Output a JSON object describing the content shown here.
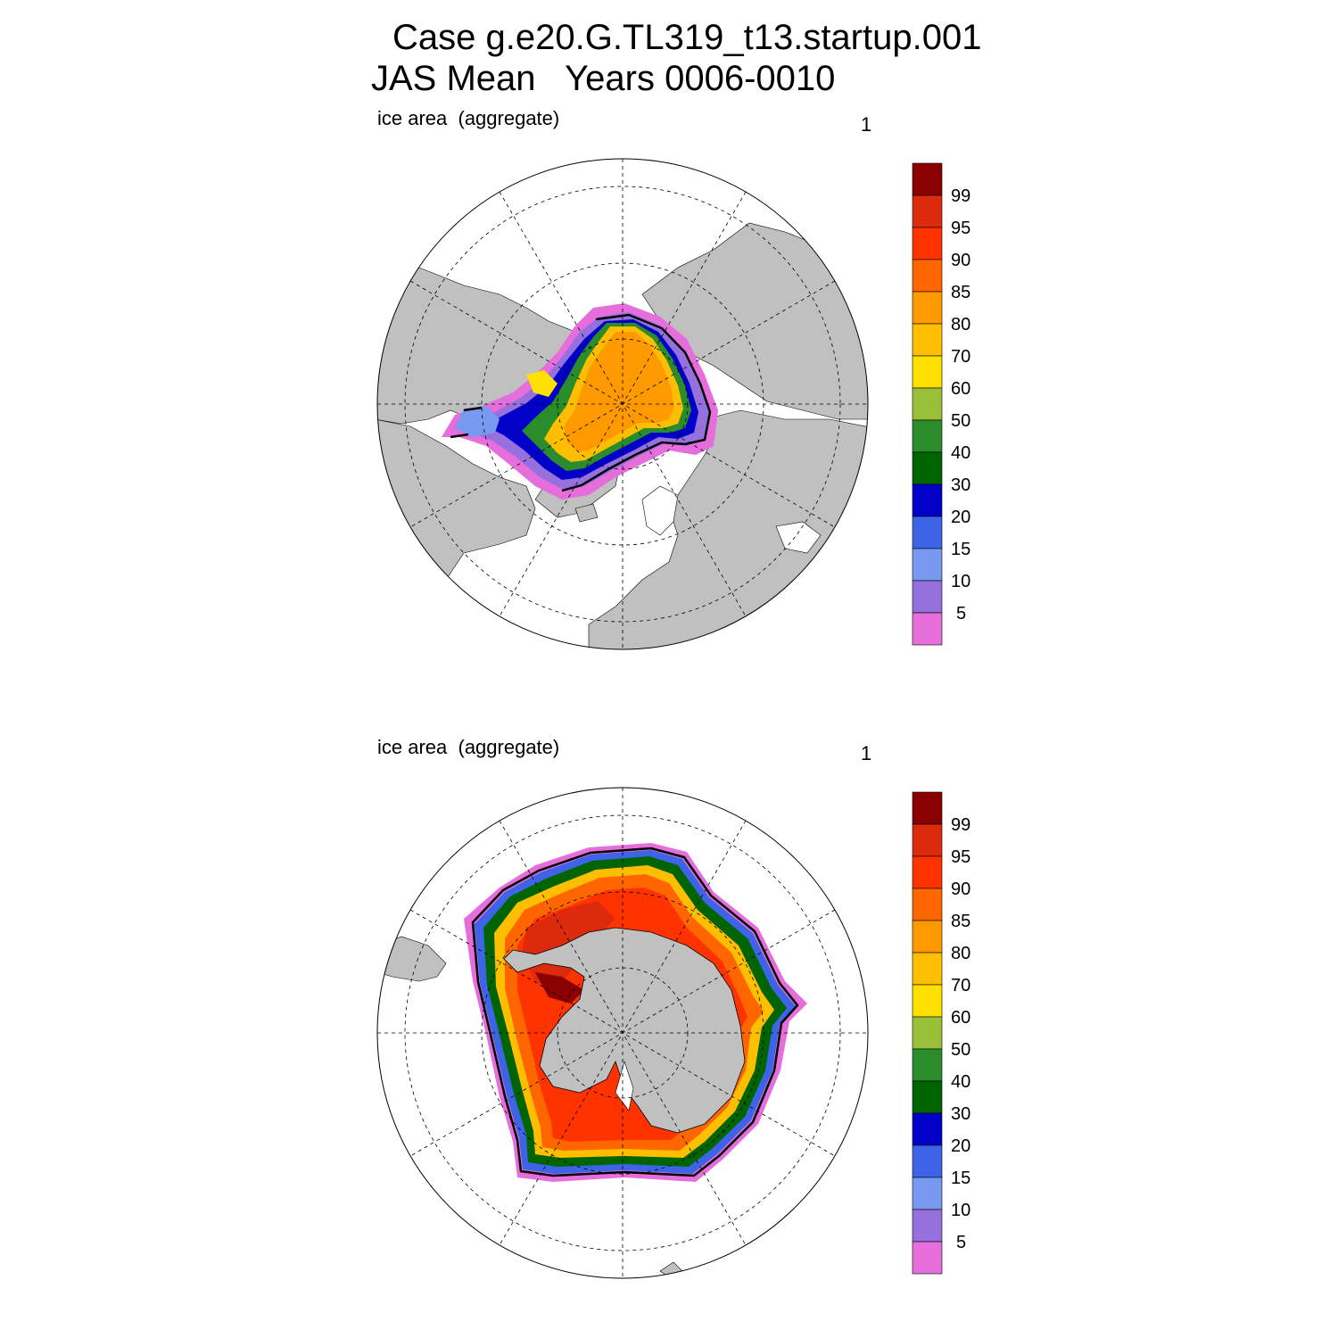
{
  "title": {
    "line1": "Case g.e20.G.TL319_t13.startup.001",
    "line2": "JAS Mean   Years 0006-0010"
  },
  "panels": [
    {
      "hemisphere": "north",
      "left_label": "ice area  (aggregate)",
      "right_label": "1",
      "colorbar_labels": [
        "99",
        "95",
        "90",
        "85",
        "80",
        "70",
        "60",
        "50",
        "40",
        "30",
        "20",
        "15",
        "10",
        "5"
      ]
    },
    {
      "hemisphere": "south",
      "left_label": "ice area  (aggregate)",
      "right_label": "1",
      "colorbar_labels": [
        "99",
        "95",
        "90",
        "85",
        "80",
        "70",
        "60",
        "50",
        "40",
        "30",
        "20",
        "15",
        "10",
        "5"
      ]
    }
  ],
  "colorbar_colors": [
    "#8b0000",
    "#dc2a0c",
    "#ff3300",
    "#ff6600",
    "#ff9900",
    "#ffbf00",
    "#ffe000",
    "#9ac03a",
    "#2a8c2a",
    "#006400",
    "#0000c8",
    "#3d64e6",
    "#7899f0",
    "#9670dc",
    "#e66edc"
  ],
  "colors": {
    "land": "#c0c0c0",
    "ocean": "#ffffff",
    "ice_edge": "#000000"
  }
}
